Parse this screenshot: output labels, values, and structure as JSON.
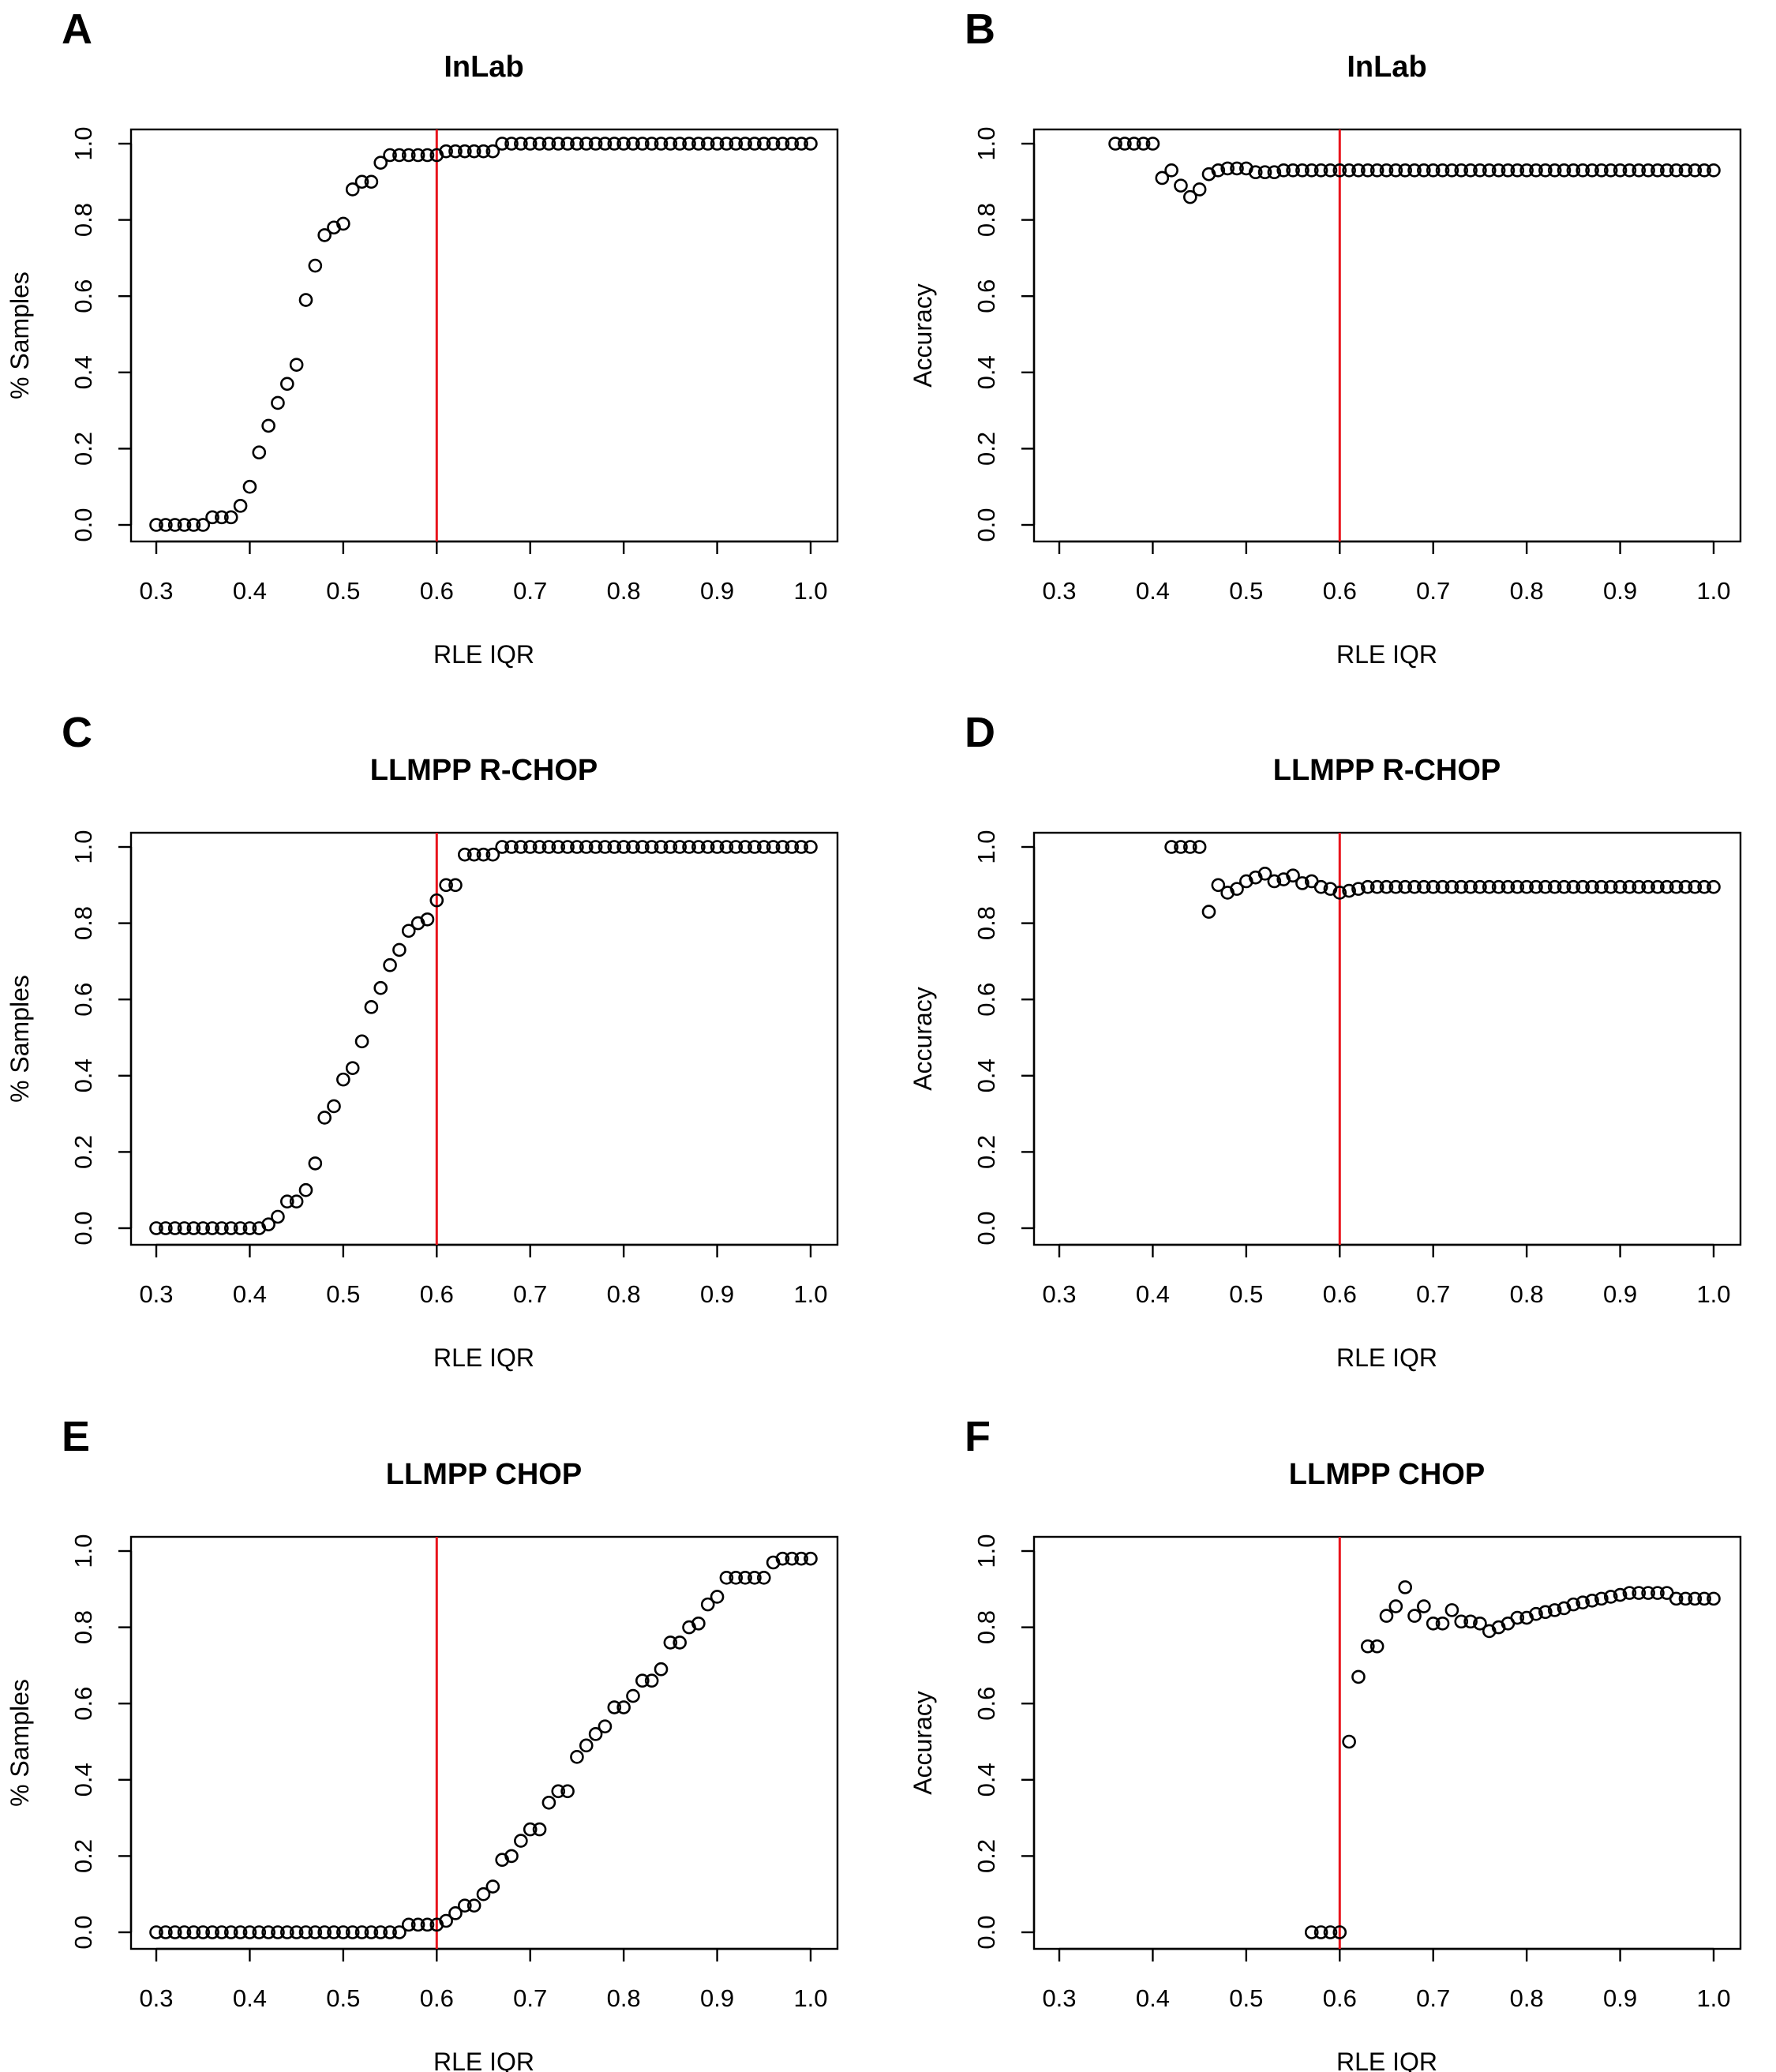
{
  "figure": {
    "panels": [
      {
        "letter": "A"
      },
      {
        "letter": "B"
      },
      {
        "letter": "C"
      },
      {
        "letter": "D"
      },
      {
        "letter": "E"
      },
      {
        "letter": "F"
      }
    ]
  },
  "chart_data": [
    {
      "type": "scatter",
      "panel": "A",
      "title": "InLab",
      "xlabel": "RLE IQR",
      "ylabel": "% Samples",
      "xlim": [
        0.3,
        1.0
      ],
      "ylim": [
        0.0,
        1.0
      ],
      "xticks": [
        "0.3",
        "0.4",
        "0.5",
        "0.6",
        "0.7",
        "0.8",
        "0.9",
        "1.0"
      ],
      "yticks": [
        "0.0",
        "0.2",
        "0.4",
        "0.6",
        "0.8",
        "1.0"
      ],
      "grid": false,
      "vline": {
        "x": 0.6,
        "color": "#e8141c"
      },
      "marker": "open-circle",
      "x": [
        0.3,
        0.31,
        0.32,
        0.33,
        0.34,
        0.35,
        0.36,
        0.37,
        0.38,
        0.39,
        0.4,
        0.41,
        0.42,
        0.43,
        0.44,
        0.45,
        0.46,
        0.47,
        0.48,
        0.49,
        0.5,
        0.51,
        0.52,
        0.53,
        0.54,
        0.55,
        0.56,
        0.57,
        0.58,
        0.59,
        0.6,
        0.61,
        0.62,
        0.63,
        0.64,
        0.65,
        0.66,
        0.67,
        0.68,
        0.69,
        0.7,
        0.71,
        0.72,
        0.73,
        0.74,
        0.75,
        0.76,
        0.77,
        0.78,
        0.79,
        0.8,
        0.81,
        0.82,
        0.83,
        0.84,
        0.85,
        0.86,
        0.87,
        0.88,
        0.89,
        0.9,
        0.91,
        0.92,
        0.93,
        0.94,
        0.95,
        0.96,
        0.97,
        0.98,
        0.99,
        1.0
      ],
      "y": [
        0,
        0,
        0,
        0,
        0,
        0,
        0.02,
        0.02,
        0.02,
        0.05,
        0.1,
        0.19,
        0.26,
        0.32,
        0.37,
        0.42,
        0.59,
        0.68,
        0.76,
        0.78,
        0.79,
        0.88,
        0.9,
        0.9,
        0.95,
        0.97,
        0.97,
        0.97,
        0.97,
        0.97,
        0.97,
        0.98,
        0.98,
        0.98,
        0.98,
        0.98,
        0.98,
        1,
        1,
        1,
        1,
        1,
        1,
        1,
        1,
        1,
        1,
        1,
        1,
        1,
        1,
        1,
        1,
        1,
        1,
        1,
        1,
        1,
        1,
        1,
        1,
        1,
        1,
        1,
        1,
        1,
        1,
        1,
        1,
        1,
        1
      ]
    },
    {
      "type": "scatter",
      "panel": "B",
      "title": "InLab",
      "xlabel": "RLE IQR",
      "ylabel": "Accuracy",
      "xlim": [
        0.3,
        1.0
      ],
      "ylim": [
        0.0,
        1.0
      ],
      "xticks": [
        "0.3",
        "0.4",
        "0.5",
        "0.6",
        "0.7",
        "0.8",
        "0.9",
        "1.0"
      ],
      "yticks": [
        "0.0",
        "0.2",
        "0.4",
        "0.6",
        "0.8",
        "1.0"
      ],
      "grid": false,
      "vline": {
        "x": 0.6,
        "color": "#e8141c"
      },
      "marker": "open-circle",
      "x": [
        0.36,
        0.37,
        0.38,
        0.39,
        0.4,
        0.41,
        0.42,
        0.43,
        0.44,
        0.45,
        0.46,
        0.47,
        0.48,
        0.49,
        0.5,
        0.51,
        0.52,
        0.53,
        0.54,
        0.55,
        0.56,
        0.57,
        0.58,
        0.59,
        0.6,
        0.61,
        0.62,
        0.63,
        0.64,
        0.65,
        0.66,
        0.67,
        0.68,
        0.69,
        0.7,
        0.71,
        0.72,
        0.73,
        0.74,
        0.75,
        0.76,
        0.77,
        0.78,
        0.79,
        0.8,
        0.81,
        0.82,
        0.83,
        0.84,
        0.85,
        0.86,
        0.87,
        0.88,
        0.89,
        0.9,
        0.91,
        0.92,
        0.93,
        0.94,
        0.95,
        0.96,
        0.97,
        0.98,
        0.99,
        1.0
      ],
      "y": [
        1,
        1,
        1,
        1,
        1,
        0.91,
        0.93,
        0.89,
        0.86,
        0.88,
        0.92,
        0.93,
        0.935,
        0.935,
        0.935,
        0.925,
        0.925,
        0.925,
        0.93,
        0.93,
        0.93,
        0.93,
        0.93,
        0.93,
        0.93,
        0.93,
        0.93,
        0.93,
        0.93,
        0.93,
        0.93,
        0.93,
        0.93,
        0.93,
        0.93,
        0.93,
        0.93,
        0.93,
        0.93,
        0.93,
        0.93,
        0.93,
        0.93,
        0.93,
        0.93,
        0.93,
        0.93,
        0.93,
        0.93,
        0.93,
        0.93,
        0.93,
        0.93,
        0.93,
        0.93,
        0.93,
        0.93,
        0.93,
        0.93,
        0.93,
        0.93,
        0.93,
        0.93,
        0.93,
        0.93
      ]
    },
    {
      "type": "scatter",
      "panel": "C",
      "title": "LLMPP R-CHOP",
      "xlabel": "RLE IQR",
      "ylabel": "% Samples",
      "xlim": [
        0.3,
        1.0
      ],
      "ylim": [
        0.0,
        1.0
      ],
      "xticks": [
        "0.3",
        "0.4",
        "0.5",
        "0.6",
        "0.7",
        "0.8",
        "0.9",
        "1.0"
      ],
      "yticks": [
        "0.0",
        "0.2",
        "0.4",
        "0.6",
        "0.8",
        "1.0"
      ],
      "grid": false,
      "vline": {
        "x": 0.6,
        "color": "#e8141c"
      },
      "marker": "open-circle",
      "x": [
        0.3,
        0.31,
        0.32,
        0.33,
        0.34,
        0.35,
        0.36,
        0.37,
        0.38,
        0.39,
        0.4,
        0.41,
        0.42,
        0.43,
        0.44,
        0.45,
        0.46,
        0.47,
        0.48,
        0.49,
        0.5,
        0.51,
        0.52,
        0.53,
        0.54,
        0.55,
        0.56,
        0.57,
        0.58,
        0.59,
        0.6,
        0.61,
        0.62,
        0.63,
        0.64,
        0.65,
        0.66,
        0.67,
        0.68,
        0.69,
        0.7,
        0.71,
        0.72,
        0.73,
        0.74,
        0.75,
        0.76,
        0.77,
        0.78,
        0.79,
        0.8,
        0.81,
        0.82,
        0.83,
        0.84,
        0.85,
        0.86,
        0.87,
        0.88,
        0.89,
        0.9,
        0.91,
        0.92,
        0.93,
        0.94,
        0.95,
        0.96,
        0.97,
        0.98,
        0.99,
        1.0
      ],
      "y": [
        0,
        0,
        0,
        0,
        0,
        0,
        0,
        0,
        0,
        0,
        0,
        0,
        0.01,
        0.03,
        0.07,
        0.07,
        0.1,
        0.17,
        0.29,
        0.32,
        0.39,
        0.42,
        0.49,
        0.58,
        0.63,
        0.69,
        0.73,
        0.78,
        0.8,
        0.81,
        0.86,
        0.9,
        0.9,
        0.98,
        0.98,
        0.98,
        0.98,
        1,
        1,
        1,
        1,
        1,
        1,
        1,
        1,
        1,
        1,
        1,
        1,
        1,
        1,
        1,
        1,
        1,
        1,
        1,
        1,
        1,
        1,
        1,
        1,
        1,
        1,
        1,
        1,
        1,
        1,
        1,
        1,
        1,
        1
      ]
    },
    {
      "type": "scatter",
      "panel": "D",
      "title": "LLMPP R-CHOP",
      "xlabel": "RLE IQR",
      "ylabel": "Accuracy",
      "xlim": [
        0.3,
        1.0
      ],
      "ylim": [
        0.0,
        1.0
      ],
      "xticks": [
        "0.3",
        "0.4",
        "0.5",
        "0.6",
        "0.7",
        "0.8",
        "0.9",
        "1.0"
      ],
      "yticks": [
        "0.0",
        "0.2",
        "0.4",
        "0.6",
        "0.8",
        "1.0"
      ],
      "grid": false,
      "vline": {
        "x": 0.6,
        "color": "#e8141c"
      },
      "marker": "open-circle",
      "x": [
        0.42,
        0.43,
        0.44,
        0.45,
        0.46,
        0.47,
        0.48,
        0.49,
        0.5,
        0.51,
        0.52,
        0.53,
        0.54,
        0.55,
        0.56,
        0.57,
        0.58,
        0.59,
        0.6,
        0.61,
        0.62,
        0.63,
        0.64,
        0.65,
        0.66,
        0.67,
        0.68,
        0.69,
        0.7,
        0.71,
        0.72,
        0.73,
        0.74,
        0.75,
        0.76,
        0.77,
        0.78,
        0.79,
        0.8,
        0.81,
        0.82,
        0.83,
        0.84,
        0.85,
        0.86,
        0.87,
        0.88,
        0.89,
        0.9,
        0.91,
        0.92,
        0.93,
        0.94,
        0.95,
        0.96,
        0.97,
        0.98,
        0.99,
        1.0
      ],
      "y": [
        1,
        1,
        1,
        1,
        0.83,
        0.9,
        0.88,
        0.89,
        0.91,
        0.92,
        0.93,
        0.91,
        0.915,
        0.925,
        0.905,
        0.91,
        0.895,
        0.89,
        0.88,
        0.885,
        0.89,
        0.895,
        0.895,
        0.895,
        0.895,
        0.895,
        0.895,
        0.895,
        0.895,
        0.895,
        0.895,
        0.895,
        0.895,
        0.895,
        0.895,
        0.895,
        0.895,
        0.895,
        0.895,
        0.895,
        0.895,
        0.895,
        0.895,
        0.895,
        0.895,
        0.895,
        0.895,
        0.895,
        0.895,
        0.895,
        0.895,
        0.895,
        0.895,
        0.895,
        0.895,
        0.895,
        0.895,
        0.895,
        0.895
      ]
    },
    {
      "type": "scatter",
      "panel": "E",
      "title": "LLMPP CHOP",
      "xlabel": "RLE IQR",
      "ylabel": "% Samples",
      "xlim": [
        0.3,
        1.0
      ],
      "ylim": [
        0.0,
        1.0
      ],
      "xticks": [
        "0.3",
        "0.4",
        "0.5",
        "0.6",
        "0.7",
        "0.8",
        "0.9",
        "1.0"
      ],
      "yticks": [
        "0.0",
        "0.2",
        "0.4",
        "0.6",
        "0.8",
        "1.0"
      ],
      "grid": false,
      "vline": {
        "x": 0.6,
        "color": "#e8141c"
      },
      "marker": "open-circle",
      "x": [
        0.3,
        0.31,
        0.32,
        0.33,
        0.34,
        0.35,
        0.36,
        0.37,
        0.38,
        0.39,
        0.4,
        0.41,
        0.42,
        0.43,
        0.44,
        0.45,
        0.46,
        0.47,
        0.48,
        0.49,
        0.5,
        0.51,
        0.52,
        0.53,
        0.54,
        0.55,
        0.56,
        0.57,
        0.58,
        0.59,
        0.6,
        0.61,
        0.62,
        0.63,
        0.64,
        0.65,
        0.66,
        0.67,
        0.68,
        0.69,
        0.7,
        0.71,
        0.72,
        0.73,
        0.74,
        0.75,
        0.76,
        0.77,
        0.78,
        0.79,
        0.8,
        0.81,
        0.82,
        0.83,
        0.84,
        0.85,
        0.86,
        0.87,
        0.88,
        0.89,
        0.9,
        0.91,
        0.92,
        0.93,
        0.94,
        0.95,
        0.96,
        0.97,
        0.98,
        0.99,
        1.0
      ],
      "y": [
        0,
        0,
        0,
        0,
        0,
        0,
        0,
        0,
        0,
        0,
        0,
        0,
        0,
        0,
        0,
        0,
        0,
        0,
        0,
        0,
        0,
        0,
        0,
        0,
        0,
        0,
        0,
        0.02,
        0.02,
        0.02,
        0.02,
        0.03,
        0.05,
        0.07,
        0.07,
        0.1,
        0.12,
        0.19,
        0.2,
        0.24,
        0.27,
        0.27,
        0.34,
        0.37,
        0.37,
        0.46,
        0.49,
        0.52,
        0.54,
        0.59,
        0.59,
        0.62,
        0.66,
        0.66,
        0.69,
        0.76,
        0.76,
        0.8,
        0.81,
        0.86,
        0.88,
        0.93,
        0.93,
        0.93,
        0.93,
        0.93,
        0.97,
        0.98,
        0.98,
        0.98,
        0.98
      ]
    },
    {
      "type": "scatter",
      "panel": "F",
      "title": "LLMPP CHOP",
      "xlabel": "RLE IQR",
      "ylabel": "Accuracy",
      "xlim": [
        0.3,
        1.0
      ],
      "ylim": [
        0.0,
        1.0
      ],
      "xticks": [
        "0.3",
        "0.4",
        "0.5",
        "0.6",
        "0.7",
        "0.8",
        "0.9",
        "1.0"
      ],
      "yticks": [
        "0.0",
        "0.2",
        "0.4",
        "0.6",
        "0.8",
        "1.0"
      ],
      "grid": false,
      "vline": {
        "x": 0.6,
        "color": "#e8141c"
      },
      "marker": "open-circle",
      "x": [
        0.57,
        0.58,
        0.59,
        0.6,
        0.61,
        0.62,
        0.63,
        0.64,
        0.65,
        0.66,
        0.67,
        0.68,
        0.69,
        0.7,
        0.71,
        0.72,
        0.73,
        0.74,
        0.75,
        0.76,
        0.77,
        0.78,
        0.79,
        0.8,
        0.81,
        0.82,
        0.83,
        0.84,
        0.85,
        0.86,
        0.87,
        0.88,
        0.89,
        0.9,
        0.91,
        0.92,
        0.93,
        0.94,
        0.95,
        0.96,
        0.97,
        0.98,
        0.99,
        1.0
      ],
      "y": [
        0,
        0,
        0,
        0,
        0.5,
        0.67,
        0.75,
        0.75,
        0.83,
        0.855,
        0.905,
        0.83,
        0.855,
        0.81,
        0.81,
        0.845,
        0.815,
        0.815,
        0.81,
        0.79,
        0.8,
        0.81,
        0.825,
        0.825,
        0.835,
        0.84,
        0.845,
        0.85,
        0.86,
        0.865,
        0.87,
        0.875,
        0.88,
        0.885,
        0.89,
        0.89,
        0.89,
        0.89,
        0.89,
        0.875,
        0.875,
        0.875,
        0.875,
        0.875
      ]
    }
  ]
}
